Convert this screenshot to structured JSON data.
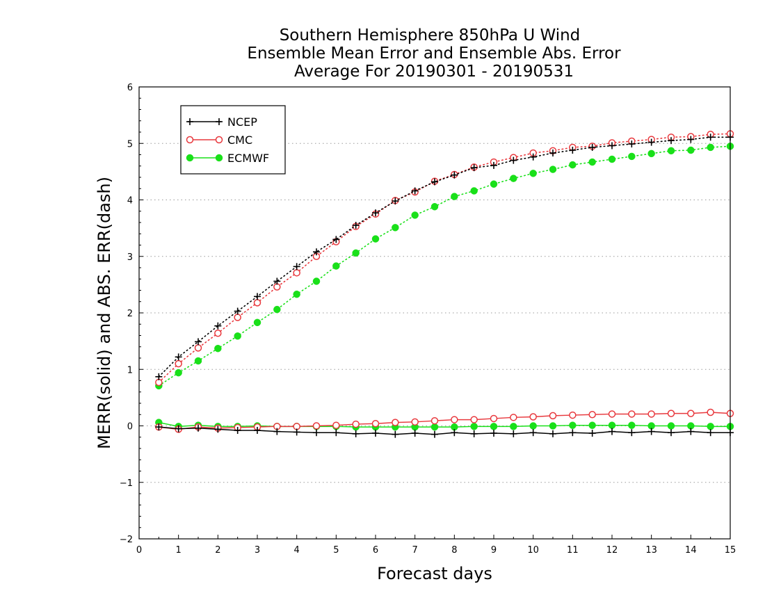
{
  "chart_data": {
    "type": "line",
    "title_lines": [
      "Southern Hemisphere 850hPa U Wind",
      "Ensemble Mean Error and Ensemble Abs. Error",
      "Average For 20190301 - 20190531"
    ],
    "xlabel": "Forecast days",
    "ylabel": "MERR(solid) and ABS. ERR(dash)",
    "xlim": [
      0,
      15
    ],
    "ylim": [
      -2,
      6
    ],
    "xticks": [
      "0",
      "1",
      "2",
      "3",
      "4",
      "5",
      "6",
      "7",
      "8",
      "9",
      "10",
      "11",
      "12",
      "13",
      "14",
      "15"
    ],
    "yticks": [
      "−2",
      "−1",
      "0",
      "1",
      "2",
      "3",
      "4",
      "5",
      "6"
    ],
    "grid": "horizontal dotted",
    "legend_position": "top-left",
    "x": [
      0.5,
      1,
      1.5,
      2,
      2.5,
      3,
      3.5,
      4,
      4.5,
      5,
      5.5,
      6,
      6.5,
      7,
      7.5,
      8,
      8.5,
      9,
      9.5,
      10,
      10.5,
      11,
      11.5,
      12,
      12.5,
      13,
      13.5,
      14,
      14.5,
      15
    ],
    "series": [
      {
        "name": "NCEP",
        "color": "#000000",
        "marker": "plus",
        "mean_error": [
          -0.02,
          -0.05,
          -0.04,
          -0.06,
          -0.08,
          -0.08,
          -0.1,
          -0.11,
          -0.12,
          -0.12,
          -0.14,
          -0.13,
          -0.15,
          -0.13,
          -0.15,
          -0.12,
          -0.14,
          -0.13,
          -0.14,
          -0.12,
          -0.14,
          -0.12,
          -0.13,
          -0.1,
          -0.12,
          -0.1,
          -0.12,
          -0.1,
          -0.12,
          -0.12
        ],
        "abs_error": [
          0.87,
          1.22,
          1.49,
          1.77,
          2.03,
          2.29,
          2.56,
          2.82,
          3.08,
          3.3,
          3.55,
          3.77,
          3.98,
          4.16,
          4.32,
          4.44,
          4.57,
          4.61,
          4.7,
          4.76,
          4.83,
          4.88,
          4.93,
          4.96,
          4.99,
          5.02,
          5.05,
          5.07,
          5.11,
          5.11
        ]
      },
      {
        "name": "CMC",
        "color": "#e8383d",
        "marker": "open-circle",
        "mean_error": [
          -0.02,
          -0.06,
          -0.02,
          -0.04,
          -0.03,
          -0.02,
          -0.01,
          -0.01,
          0.0,
          0.01,
          0.03,
          0.04,
          0.06,
          0.07,
          0.09,
          0.11,
          0.11,
          0.13,
          0.15,
          0.16,
          0.18,
          0.19,
          0.2,
          0.21,
          0.21,
          0.21,
          0.22,
          0.22,
          0.24,
          0.22
        ],
        "abs_error": [
          0.77,
          1.1,
          1.38,
          1.64,
          1.92,
          2.18,
          2.46,
          2.71,
          3.0,
          3.26,
          3.53,
          3.75,
          3.99,
          4.14,
          4.33,
          4.45,
          4.58,
          4.67,
          4.75,
          4.83,
          4.87,
          4.93,
          4.95,
          5.01,
          5.04,
          5.07,
          5.11,
          5.12,
          5.16,
          5.17
        ]
      },
      {
        "name": "ECMWF",
        "color": "#19e019",
        "marker": "filled-circle",
        "mean_error": [
          0.06,
          -0.01,
          0.01,
          -0.01,
          -0.01,
          0.0,
          -0.01,
          -0.01,
          -0.01,
          -0.01,
          -0.02,
          -0.02,
          -0.02,
          -0.02,
          -0.02,
          -0.02,
          -0.01,
          -0.01,
          -0.01,
          0.0,
          0.0,
          0.01,
          0.01,
          0.01,
          0.01,
          0.0,
          0.0,
          0.0,
          -0.01,
          -0.01
        ],
        "abs_error": [
          0.71,
          0.94,
          1.15,
          1.37,
          1.59,
          1.83,
          2.06,
          2.33,
          2.56,
          2.83,
          3.06,
          3.31,
          3.51,
          3.73,
          3.88,
          4.06,
          4.16,
          4.28,
          4.38,
          4.47,
          4.54,
          4.62,
          4.67,
          4.72,
          4.77,
          4.82,
          4.87,
          4.88,
          4.93,
          4.95
        ]
      }
    ]
  }
}
